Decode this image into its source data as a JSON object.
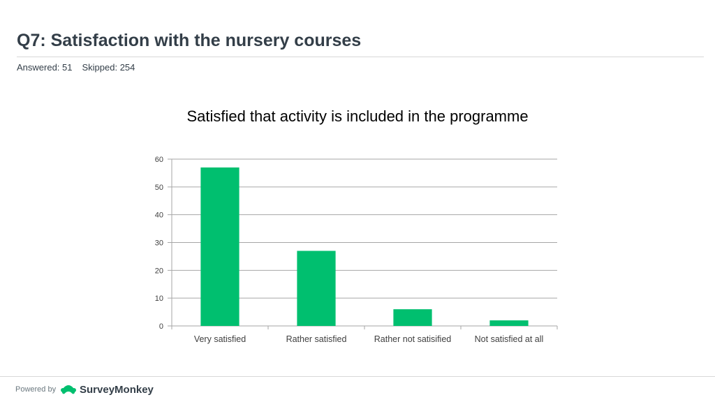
{
  "header": {
    "title": "Q7: Satisfaction with the nursery courses",
    "answered": "Answered: 51",
    "skipped": "Skipped: 254"
  },
  "chart_data": {
    "type": "bar",
    "title": "Satisfied that activity is included in the programme",
    "categories": [
      "Very satisfied",
      "Rather satisfied",
      "Rather not satisified",
      "Not satisfied at all"
    ],
    "values": [
      57,
      27,
      6,
      2
    ],
    "ylim": [
      0,
      60
    ],
    "yticks": [
      0,
      10,
      20,
      30,
      40,
      50,
      60
    ],
    "xlabel": "",
    "ylabel": "",
    "grid": true,
    "bar_color": "#00bf6f"
  },
  "footer": {
    "powered_by": "Powered by",
    "brand": "SurveyMonkey",
    "brand_color": "#00bf6f"
  }
}
